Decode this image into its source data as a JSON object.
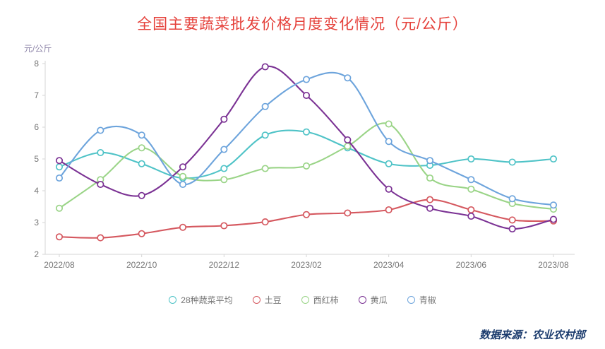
{
  "page": {
    "source": "数据来源：农业农村部"
  },
  "style": {
    "title_color": "#e5403a",
    "axis_text": "#767676",
    "axis_line": "#d6d6d6",
    "ylabel_color": "#8d84a8",
    "source_color": "#1c3c6e"
  },
  "chart_data": {
    "type": "line",
    "title": "全国主要蔬菜批发价格月度变化情况（元/公斤）",
    "ylabel": "元/公斤",
    "xlabel": "",
    "ylim": [
      2,
      8
    ],
    "y_ticks": [
      2,
      3,
      4,
      5,
      6,
      7,
      8
    ],
    "x_tick_step": 2,
    "grid": false,
    "smooth": true,
    "marker": "circle-hollow",
    "legend_position": "bottom",
    "categories": [
      "2022/08",
      "2022/09",
      "2022/10",
      "2022/11",
      "2022/12",
      "2023/01",
      "2023/02",
      "2023/03",
      "2023/04",
      "2023/05",
      "2023/06",
      "2023/07",
      "2023/08"
    ],
    "x_tick_labels": [
      "2022/08",
      "2022/10",
      "2022/12",
      "2023/02",
      "2023/04",
      "2023/06",
      "2023/08"
    ],
    "series": [
      {
        "name": "28种蔬菜平均",
        "color": "#4fc3c7",
        "values": [
          4.75,
          5.2,
          4.85,
          4.4,
          4.7,
          5.75,
          5.85,
          5.35,
          4.85,
          4.8,
          5.0,
          4.9,
          5.0
        ]
      },
      {
        "name": "土豆",
        "color": "#d5585f",
        "values": [
          2.55,
          2.52,
          2.65,
          2.85,
          2.9,
          3.02,
          3.25,
          3.3,
          3.4,
          3.72,
          3.4,
          3.08,
          3.05
        ]
      },
      {
        "name": "西红柿",
        "color": "#9ad487",
        "values": [
          3.45,
          4.35,
          5.35,
          4.45,
          4.35,
          4.7,
          4.78,
          5.4,
          6.1,
          4.4,
          4.05,
          3.6,
          3.42
        ]
      },
      {
        "name": "黄瓜",
        "color": "#7b3294",
        "values": [
          4.95,
          4.2,
          3.85,
          4.75,
          6.25,
          7.9,
          7.0,
          5.6,
          4.05,
          3.45,
          3.2,
          2.8,
          3.1
        ]
      },
      {
        "name": "青椒",
        "color": "#6da4dc",
        "values": [
          4.4,
          5.9,
          5.75,
          4.2,
          5.3,
          6.65,
          7.5,
          7.55,
          5.55,
          4.95,
          4.35,
          3.75,
          3.55
        ]
      }
    ]
  }
}
